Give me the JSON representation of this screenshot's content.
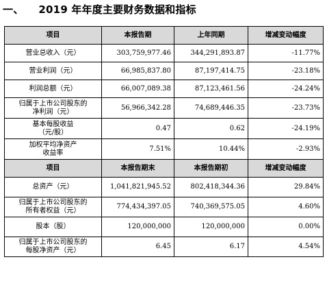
{
  "section": {
    "number": "一、",
    "title": "2019 年年度主要财务数据和指标"
  },
  "table1": {
    "headers": [
      "项目",
      "本报告期",
      "上年同期",
      "增减变动幅度"
    ],
    "rows": [
      {
        "label": "营业总收入（元）",
        "current": "303,759,977.46",
        "previous": "344,291,893.87",
        "change": "-11.77%"
      },
      {
        "label": "营业利润（元）",
        "current": "66,985,837.80",
        "previous": "87,197,414.75",
        "change": "-23.18%"
      },
      {
        "label": "利润总额（元）",
        "current": "66,007,089.38",
        "previous": "87,123,461.56",
        "change": "-24.24%"
      },
      {
        "label_line1": "归属于上市公司股东的",
        "label_line2": "净利润（元）",
        "current": "56,966,342.28",
        "previous": "74,689,446.35",
        "change": "-23.73%"
      },
      {
        "label_line1": "基本每股收益",
        "label_line2": "（元/股）",
        "current": "0.47",
        "previous": "0.62",
        "change": "-24.19%"
      },
      {
        "label_line1": "加权平均净资产",
        "label_line2": "收益率",
        "current": "7.51%",
        "previous": "10.44%",
        "change": "-2.93%"
      }
    ]
  },
  "table2": {
    "headers": [
      "项目",
      "本报告期末",
      "本报告期初",
      "增减变动幅度"
    ],
    "rows": [
      {
        "label": "总资产（元）",
        "current": "1,041,821,945.52",
        "previous": "802,418,344.36",
        "change": "29.84%"
      },
      {
        "label_line1": "归属于上市公司股东的",
        "label_line2": "所有者权益（元）",
        "current": "774,434,397.05",
        "previous": "740,369,575.05",
        "change": "4.60%"
      },
      {
        "label": "股本（股）",
        "current": "120,000,000",
        "previous": "120,000,000",
        "change": "0.00%"
      },
      {
        "label_line1": "归属于上市公司股东的",
        "label_line2": "每股净资产（元）",
        "current": "6.45",
        "previous": "6.17",
        "change": "4.54%"
      }
    ]
  }
}
